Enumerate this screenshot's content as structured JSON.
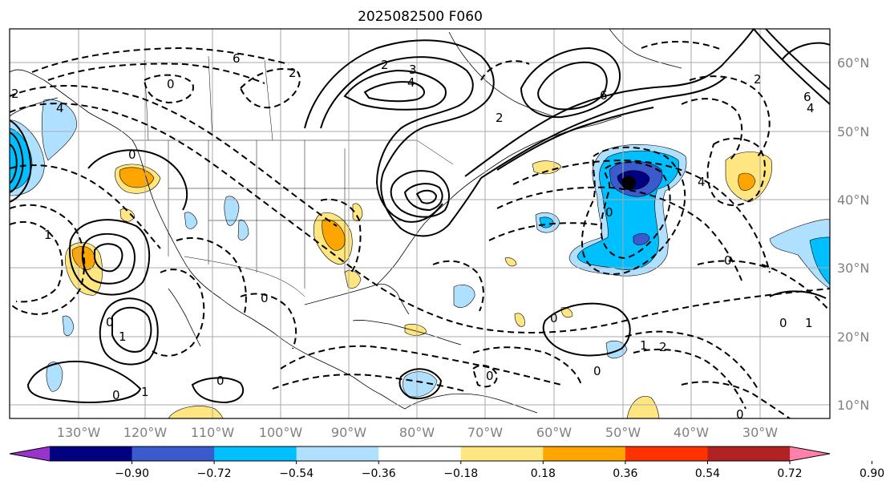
{
  "title": "2025082500 F060",
  "latitude_labels": [
    "60°N",
    "50°N",
    "40°N",
    "30°N",
    "20°N",
    "10°N"
  ],
  "longitude_labels": [
    "130°W",
    "120°W",
    "110°W",
    "100°W",
    "90°W",
    "80°W",
    "70°W",
    "60°W",
    "50°W",
    "40°W",
    "30°W"
  ],
  "colorbar": {
    "tick_labels": [
      "−0.90",
      "−0.72",
      "−0.54",
      "−0.36",
      "−0.18",
      "0.18",
      "0.36",
      "0.54",
      "0.72",
      "0.90"
    ],
    "colors": [
      "#9933cc",
      "#000080",
      "#3a5acd",
      "#00bfff",
      "#b0e0ff",
      "#ffffff",
      "#ffe680",
      "#ffa500",
      "#ff3300",
      "#b22222",
      "#ff80aa"
    ]
  },
  "contour_labels": [
    "6",
    "3",
    "4",
    "2",
    "6",
    "2",
    "4",
    "0",
    "0",
    "2",
    "2",
    "1",
    "4",
    "0",
    "1",
    "0",
    "0",
    "0",
    "0",
    "0",
    "0",
    "0",
    "1",
    "2",
    "0",
    "1",
    "6",
    "4",
    "2",
    "0",
    "0",
    "1"
  ],
  "marker": "black-dot"
}
